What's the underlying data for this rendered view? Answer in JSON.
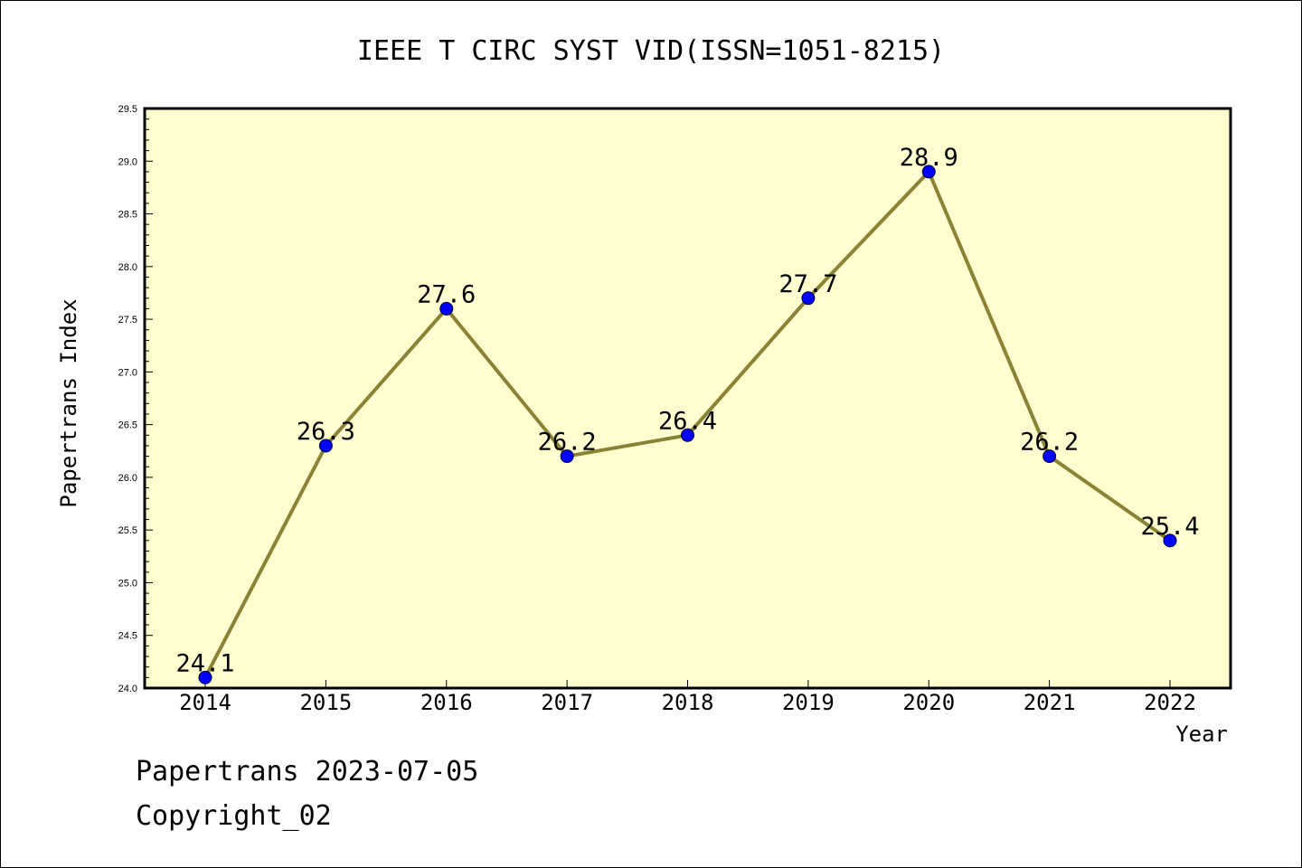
{
  "chart_data": {
    "type": "line",
    "title": "IEEE T CIRC SYST VID(ISSN=1051-8215)",
    "xlabel": "Year",
    "ylabel": "Papertrans Index",
    "categories": [
      "2014",
      "2015",
      "2016",
      "2017",
      "2018",
      "2019",
      "2020",
      "2021",
      "2022"
    ],
    "series": [
      {
        "values": [
          24.1,
          26.3,
          27.6,
          26.2,
          26.4,
          27.7,
          28.9,
          26.2,
          25.4
        ]
      }
    ],
    "data_labels": [
      "24.1",
      "26.3",
      "27.6",
      "26.2",
      "26.4",
      "27.7",
      "28.9",
      "26.2",
      "25.4"
    ],
    "ylim": [
      24.0,
      29.5
    ],
    "yticks": [
      "24.0",
      "24.5",
      "25.0",
      "25.5",
      "26.0",
      "26.5",
      "27.0",
      "27.5",
      "28.0",
      "28.5",
      "29.0",
      "29.5"
    ],
    "grid": false,
    "colors": {
      "plot_background": "#ffffd0",
      "line": "#8b8236",
      "marker": "#0000ff"
    }
  },
  "footer": {
    "line1": "Papertrans 2023-07-05",
    "line2": "Copyright_02"
  }
}
